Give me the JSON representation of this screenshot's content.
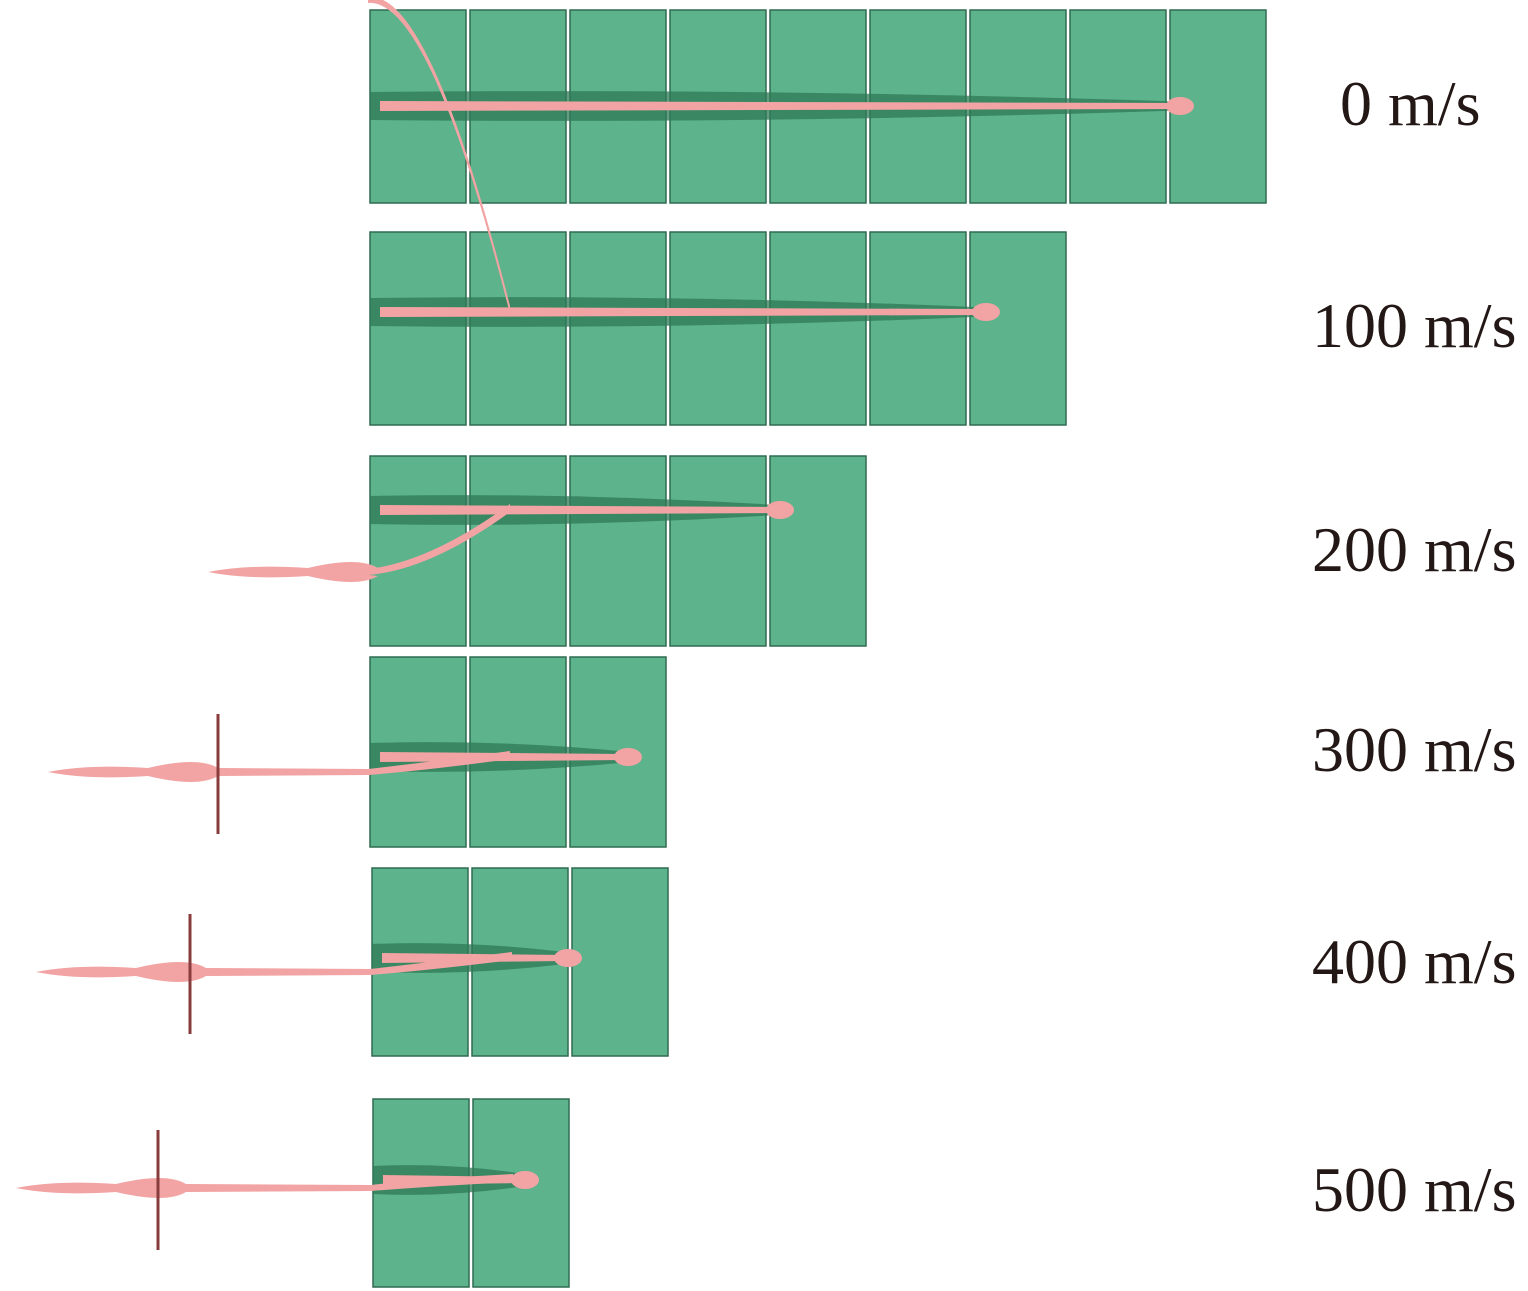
{
  "figure": {
    "colors": {
      "plate": "#5cb38c",
      "plate_edge": "#2f6b50",
      "jet": "#f2a3a3",
      "jet_dark": "#b8555a",
      "fragment": "#8a3b3b",
      "label": "#231815"
    },
    "panels": [
      {
        "label": "0 m/s",
        "plates_perforated": 9
      },
      {
        "label": "100 m/s",
        "plates_perforated": 7
      },
      {
        "label": "200 m/s",
        "plates_perforated": 5
      },
      {
        "label": "300 m/s",
        "plates_perforated": 3
      },
      {
        "label": "400 m/s",
        "plates_perforated": 3
      },
      {
        "label": "500 m/s",
        "plates_perforated": 2
      }
    ]
  }
}
